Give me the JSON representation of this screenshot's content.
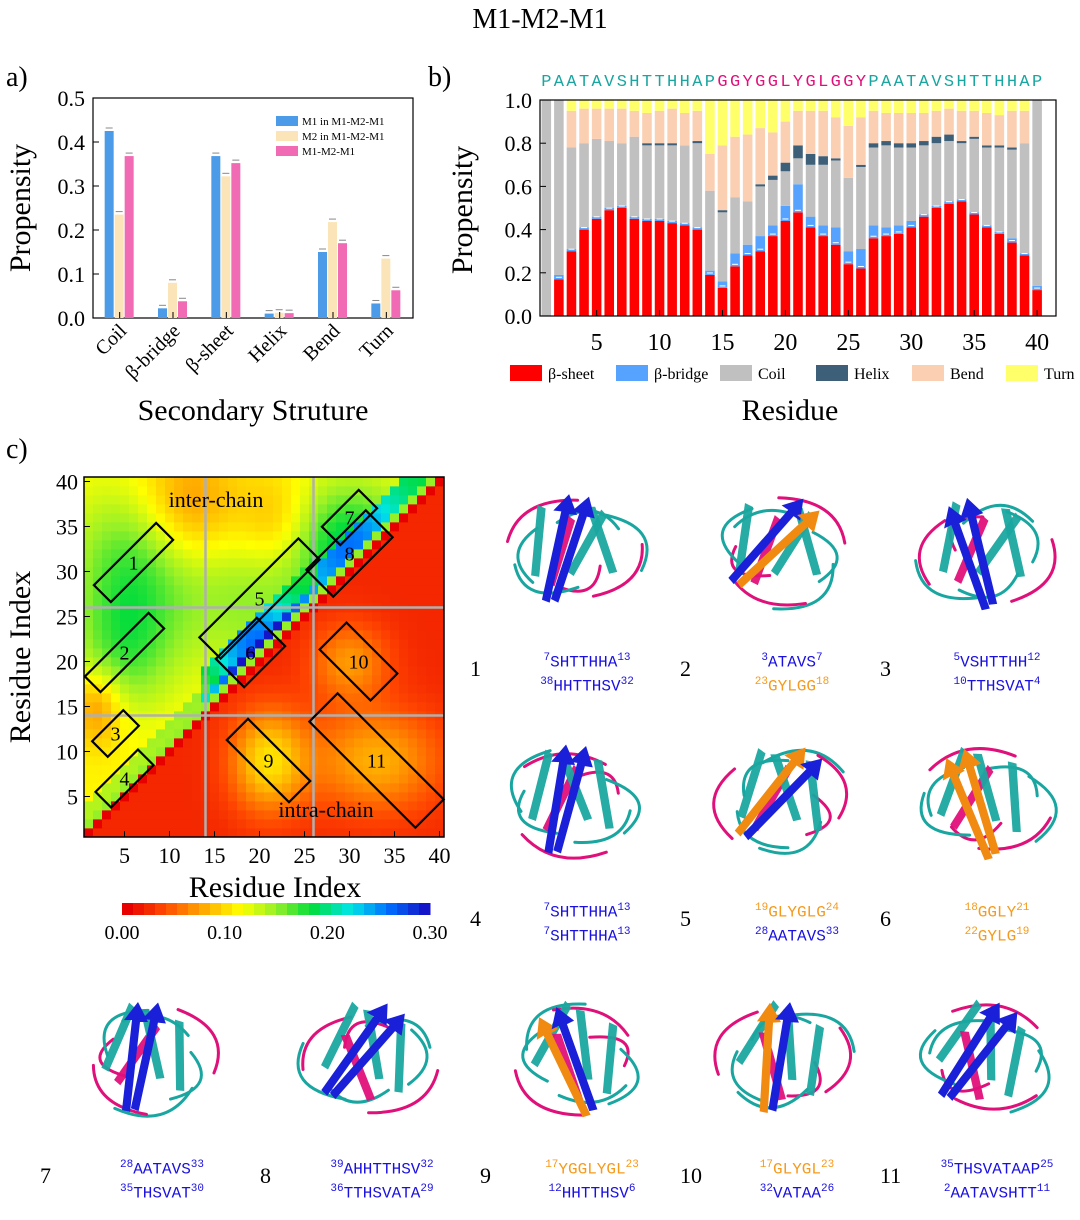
{
  "figure_title": "M1-M2-M1",
  "panel_labels": {
    "a": "a)",
    "b": "b)",
    "c": "c)"
  },
  "colors": {
    "m1": "#4c9be8",
    "m2": "#fbe5b8",
    "m1m2m1": "#f06bb4",
    "beta_sheet": "#ff0000",
    "beta_bridge": "#55a3ff",
    "coil": "#c0c0c0",
    "helix": "#3e5f78",
    "bend": "#fbcfb2",
    "turn": "#ffff6a",
    "teal": "#1aa6a0",
    "magenta": "#e0107a",
    "blue_text": "#1a10e0",
    "orange_text": "#f59a1c"
  },
  "chart_data": [
    {
      "type": "bar",
      "panel": "a",
      "categories": [
        "Coil",
        "β-bridge",
        "β-sheet",
        "Helix",
        "Bend",
        "Turn"
      ],
      "series": [
        {
          "name": "M1 in M1-M2-M1",
          "values": [
            0.425,
            0.022,
            0.368,
            0.01,
            0.15,
            0.033
          ]
        },
        {
          "name": "M2 in M1-M2-M1",
          "values": [
            0.235,
            0.08,
            0.322,
            0.012,
            0.218,
            0.135
          ]
        },
        {
          "name": "M1-M2-M1",
          "values": [
            0.368,
            0.038,
            0.352,
            0.011,
            0.17,
            0.063
          ]
        }
      ],
      "xlabel": "Secondary Struture",
      "ylabel": "Propensity",
      "ylim": [
        0,
        0.5
      ],
      "yticks": [
        "0.0",
        "0.1",
        "0.2",
        "0.3",
        "0.4",
        "0.5"
      ],
      "legend_position": "top-right"
    },
    {
      "type": "bar",
      "stacked": true,
      "panel": "b",
      "sequence_top": "PAATAVSHTTHHAPGGYGGLYGLGGYPAATAVSHTTHHAP",
      "sequence_segments": [
        {
          "text": "PAATAVSHTTHHAP",
          "color": "#1aa6a0"
        },
        {
          "text": "GGYGGLYGLGGY",
          "color": "#e0107a"
        },
        {
          "text": "PAATAVSHTTHHAP",
          "color": "#1aa6a0"
        }
      ],
      "x": [
        1,
        2,
        3,
        4,
        5,
        6,
        7,
        8,
        9,
        10,
        11,
        12,
        13,
        14,
        15,
        16,
        17,
        18,
        19,
        20,
        21,
        22,
        23,
        24,
        25,
        26,
        27,
        28,
        29,
        30,
        31,
        32,
        33,
        34,
        35,
        36,
        37,
        38,
        39,
        40
      ],
      "series": [
        {
          "name": "β-sheet",
          "values": [
            0.0,
            0.17,
            0.3,
            0.4,
            0.45,
            0.49,
            0.5,
            0.45,
            0.44,
            0.44,
            0.43,
            0.42,
            0.4,
            0.19,
            0.13,
            0.23,
            0.28,
            0.3,
            0.37,
            0.44,
            0.48,
            0.41,
            0.37,
            0.33,
            0.24,
            0.22,
            0.36,
            0.37,
            0.38,
            0.41,
            0.46,
            0.5,
            0.52,
            0.53,
            0.47,
            0.41,
            0.38,
            0.34,
            0.28,
            0.12
          ]
        },
        {
          "name": "β-bridge",
          "values": [
            0.0,
            0.02,
            0.01,
            0.01,
            0.01,
            0.01,
            0.01,
            0.01,
            0.01,
            0.01,
            0.01,
            0.01,
            0.01,
            0.02,
            0.03,
            0.06,
            0.05,
            0.07,
            0.05,
            0.07,
            0.13,
            0.05,
            0.05,
            0.08,
            0.06,
            0.09,
            0.06,
            0.04,
            0.04,
            0.03,
            0.01,
            0.01,
            0.01,
            0.01,
            0.01,
            0.01,
            0.01,
            0.02,
            0.01,
            0.02
          ]
        },
        {
          "name": "Coil",
          "values": [
            1.0,
            0.81,
            0.47,
            0.39,
            0.36,
            0.31,
            0.29,
            0.37,
            0.34,
            0.34,
            0.35,
            0.36,
            0.39,
            0.37,
            0.32,
            0.26,
            0.2,
            0.23,
            0.21,
            0.16,
            0.12,
            0.24,
            0.28,
            0.31,
            0.34,
            0.38,
            0.36,
            0.38,
            0.36,
            0.34,
            0.32,
            0.29,
            0.28,
            0.26,
            0.34,
            0.36,
            0.39,
            0.41,
            0.51,
            0.86
          ]
        },
        {
          "name": "Helix",
          "values": [
            0.0,
            0.0,
            0.0,
            0.0,
            0.0,
            0.0,
            0.0,
            0.0,
            0.01,
            0.01,
            0.01,
            0.0,
            0.01,
            0.0,
            0.01,
            0.0,
            0.0,
            0.01,
            0.02,
            0.04,
            0.06,
            0.05,
            0.04,
            0.01,
            0.0,
            0.01,
            0.02,
            0.02,
            0.02,
            0.02,
            0.02,
            0.03,
            0.03,
            0.01,
            0.01,
            0.01,
            0.01,
            0.01,
            0.0,
            0.0
          ]
        },
        {
          "name": "Bend",
          "values": [
            0.0,
            0.0,
            0.17,
            0.16,
            0.14,
            0.15,
            0.16,
            0.12,
            0.14,
            0.15,
            0.16,
            0.15,
            0.14,
            0.17,
            0.3,
            0.28,
            0.31,
            0.26,
            0.2,
            0.19,
            0.16,
            0.2,
            0.21,
            0.19,
            0.24,
            0.22,
            0.15,
            0.13,
            0.14,
            0.14,
            0.13,
            0.12,
            0.12,
            0.14,
            0.12,
            0.15,
            0.14,
            0.17,
            0.15,
            0.0
          ]
        },
        {
          "name": "Turn",
          "values": [
            0.0,
            0.0,
            0.05,
            0.04,
            0.04,
            0.04,
            0.04,
            0.05,
            0.06,
            0.05,
            0.04,
            0.06,
            0.05,
            0.25,
            0.21,
            0.17,
            0.16,
            0.13,
            0.15,
            0.1,
            0.05,
            0.05,
            0.05,
            0.08,
            0.12,
            0.08,
            0.05,
            0.06,
            0.06,
            0.06,
            0.06,
            0.05,
            0.04,
            0.05,
            0.05,
            0.06,
            0.07,
            0.05,
            0.05,
            0.0
          ]
        }
      ],
      "xlabel": "Residue",
      "ylabel": "Propensity",
      "ylim": [
        0,
        1.0
      ],
      "xticks": [
        5,
        10,
        15,
        20,
        25,
        30,
        35,
        40
      ],
      "yticks": [
        "0.0",
        "0.2",
        "0.4",
        "0.6",
        "0.8",
        "1.0"
      ],
      "legend_position": "bottom"
    },
    {
      "type": "heatmap",
      "panel": "c",
      "xlabel": "Residue Index",
      "ylabel": "Residue Index",
      "x_range": [
        1,
        40
      ],
      "y_range": [
        1,
        40
      ],
      "xticks": [
        5,
        10,
        15,
        20,
        25,
        30,
        35,
        40
      ],
      "yticks": [
        5,
        10,
        15,
        20,
        25,
        30,
        35,
        40
      ],
      "colorbar_range": [
        0.0,
        0.3
      ],
      "colorbar_ticks": [
        "0.00",
        "0.10",
        "0.20",
        "0.30"
      ],
      "region_labels": [
        "inter-chain",
        "intra-chain"
      ],
      "grid_lines_at": [
        14,
        26
      ],
      "boxes": [
        {
          "label": "1",
          "center": [
            6,
            31
          ]
        },
        {
          "label": "2",
          "center": [
            5,
            21
          ]
        },
        {
          "label": "3",
          "center": [
            4,
            12
          ]
        },
        {
          "label": "4",
          "center": [
            5,
            7
          ]
        },
        {
          "label": "5",
          "center": [
            20,
            27
          ]
        },
        {
          "label": "6",
          "center": [
            19,
            21
          ]
        },
        {
          "label": "7",
          "center": [
            30,
            36
          ]
        },
        {
          "label": "8",
          "center": [
            30,
            32
          ]
        },
        {
          "label": "9",
          "center": [
            21,
            9
          ]
        },
        {
          "label": "10",
          "center": [
            31,
            20
          ]
        },
        {
          "label": "11",
          "center": [
            33,
            9
          ]
        }
      ]
    }
  ],
  "structures": [
    {
      "num": "1",
      "lines": [
        {
          "color": "blue",
          "pre": "7",
          "seq": "SHTTHHA",
          "post": "13"
        },
        {
          "color": "blue",
          "pre": "38",
          "seq": "HHTTHSV",
          "post": "32"
        }
      ]
    },
    {
      "num": "2",
      "lines": [
        {
          "color": "blue",
          "pre": "3",
          "seq": "ATAVS",
          "post": "7"
        },
        {
          "color": "orange",
          "pre": "23",
          "seq": "GYLGG",
          "post": "18"
        }
      ]
    },
    {
      "num": "3",
      "lines": [
        {
          "color": "blue",
          "pre": "5",
          "seq": "VSHTTHH",
          "post": "12"
        },
        {
          "color": "blue",
          "pre": "10",
          "seq": "TTHSVAT",
          "post": "4"
        }
      ]
    },
    {
      "num": "4",
      "lines": [
        {
          "color": "blue",
          "pre": "7",
          "seq": "SHTTHHA",
          "post": "13"
        },
        {
          "color": "blue",
          "pre": "7",
          "seq": "SHTTHHA",
          "post": "13"
        }
      ]
    },
    {
      "num": "5",
      "lines": [
        {
          "color": "orange",
          "pre": "19",
          "seq": "GLYGLG",
          "post": "24"
        },
        {
          "color": "blue",
          "pre": "28",
          "seq": "AATAVS",
          "post": "33"
        }
      ]
    },
    {
      "num": "6",
      "lines": [
        {
          "color": "orange",
          "pre": "18",
          "seq": "GGLY",
          "post": "21"
        },
        {
          "color": "orange",
          "pre": "22",
          "seq": "GYLG",
          "post": "19"
        }
      ]
    },
    {
      "num": "7",
      "lines": [
        {
          "color": "blue",
          "pre": "28",
          "seq": "AATAVS",
          "post": "33"
        },
        {
          "color": "blue",
          "pre": "35",
          "seq": "THSVAT",
          "post": "30"
        }
      ]
    },
    {
      "num": "8",
      "lines": [
        {
          "color": "blue",
          "pre": "39",
          "seq": "AHHTTHSV",
          "post": "32"
        },
        {
          "color": "blue",
          "pre": "36",
          "seq": "TTHSVATA",
          "post": "29"
        }
      ]
    },
    {
      "num": "9",
      "lines": [
        {
          "color": "orange",
          "pre": "17",
          "seq": "YGGLYGL",
          "post": "23"
        },
        {
          "color": "blue",
          "pre": "12",
          "seq": "HHTTHSV",
          "post": "6"
        }
      ]
    },
    {
      "num": "10",
      "lines": [
        {
          "color": "orange",
          "pre": "17",
          "seq": "GLYGL",
          "post": "23"
        },
        {
          "color": "blue",
          "pre": "32",
          "seq": "VATAA",
          "post": "26"
        }
      ]
    },
    {
      "num": "11",
      "lines": [
        {
          "color": "blue",
          "pre": "35",
          "seq": "THSVATAAP",
          "post": "25"
        },
        {
          "color": "blue",
          "pre": "2",
          "seq": "AATAVSHTT",
          "post": "11"
        }
      ]
    }
  ]
}
